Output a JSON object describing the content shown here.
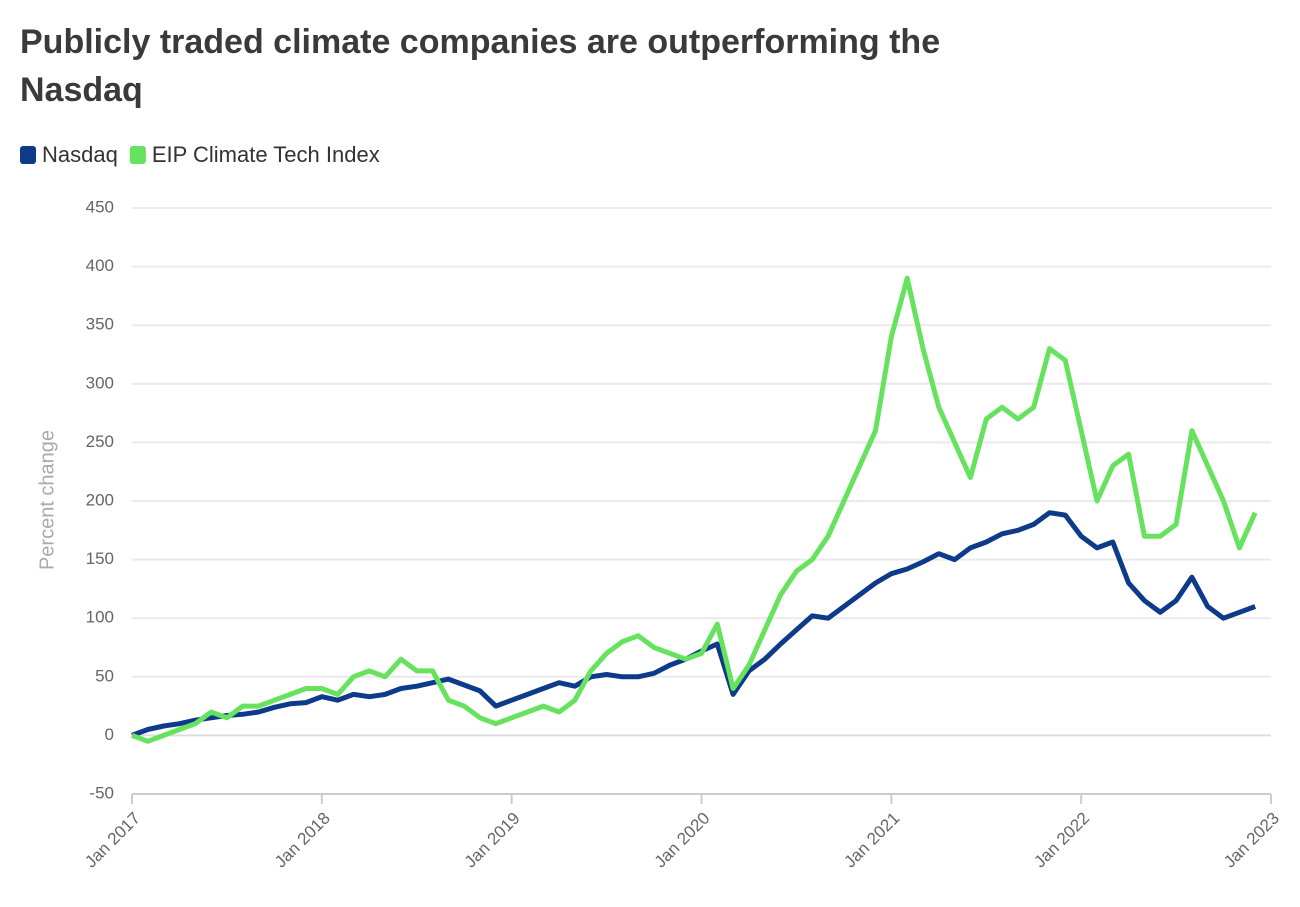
{
  "chart_data": {
    "type": "line",
    "title": "Publicly traded climate companies are outperforming the Nasdaq",
    "y_label": "Percent change",
    "x": [
      "2017-01",
      "2017-02",
      "2017-03",
      "2017-04",
      "2017-05",
      "2017-06",
      "2017-07",
      "2017-08",
      "2017-09",
      "2017-10",
      "2017-11",
      "2017-12",
      "2018-01",
      "2018-02",
      "2018-03",
      "2018-04",
      "2018-05",
      "2018-06",
      "2018-07",
      "2018-08",
      "2018-09",
      "2018-10",
      "2018-11",
      "2018-12",
      "2019-01",
      "2019-02",
      "2019-03",
      "2019-04",
      "2019-05",
      "2019-06",
      "2019-07",
      "2019-08",
      "2019-09",
      "2019-10",
      "2019-11",
      "2019-12",
      "2020-01",
      "2020-02",
      "2020-03",
      "2020-04",
      "2020-05",
      "2020-06",
      "2020-07",
      "2020-08",
      "2020-09",
      "2020-10",
      "2020-11",
      "2020-12",
      "2021-01",
      "2021-02",
      "2021-03",
      "2021-04",
      "2021-05",
      "2021-06",
      "2021-07",
      "2021-08",
      "2021-09",
      "2021-10",
      "2021-11",
      "2021-12",
      "2022-01",
      "2022-02",
      "2022-03",
      "2022-04",
      "2022-05",
      "2022-06",
      "2022-07",
      "2022-08",
      "2022-09",
      "2022-10",
      "2022-11",
      "2022-12"
    ],
    "series": [
      {
        "name": "Nasdaq",
        "color": "#0e3a8a",
        "values": [
          0,
          5,
          8,
          10,
          13,
          15,
          17,
          18,
          20,
          24,
          27,
          28,
          33,
          30,
          35,
          33,
          35,
          40,
          42,
          45,
          48,
          43,
          38,
          25,
          30,
          35,
          40,
          45,
          42,
          50,
          52,
          50,
          50,
          53,
          60,
          65,
          72,
          78,
          35,
          55,
          65,
          78,
          90,
          102,
          100,
          110,
          120,
          130,
          138,
          142,
          148,
          155,
          150,
          160,
          165,
          172,
          175,
          180,
          190,
          188,
          170,
          160,
          165,
          130,
          115,
          105,
          115,
          135,
          110,
          100,
          105,
          110
        ]
      },
      {
        "name": "EIP Climate Tech Index",
        "color": "#67e25f",
        "values": [
          0,
          -5,
          0,
          5,
          10,
          20,
          15,
          25,
          25,
          30,
          35,
          40,
          40,
          35,
          50,
          55,
          50,
          65,
          55,
          55,
          30,
          25,
          15,
          10,
          15,
          20,
          25,
          20,
          30,
          55,
          70,
          80,
          85,
          75,
          70,
          65,
          70,
          95,
          40,
          60,
          90,
          120,
          140,
          150,
          170,
          200,
          230,
          260,
          340,
          390,
          330,
          280,
          250,
          220,
          270,
          280,
          270,
          280,
          330,
          320,
          260,
          200,
          230,
          240,
          170,
          170,
          180,
          260,
          230,
          200,
          160,
          190
        ]
      }
    ],
    "xlim": [
      "2017-01",
      "2023-01"
    ],
    "xticks": [
      {
        "value": "2017-01",
        "label": "Jan 2017"
      },
      {
        "value": "2018-01",
        "label": "Jan 2018"
      },
      {
        "value": "2019-01",
        "label": "Jan 2019"
      },
      {
        "value": "2020-01",
        "label": "Jan 2020"
      },
      {
        "value": "2021-01",
        "label": "Jan 2021"
      },
      {
        "value": "2022-01",
        "label": "Jan 2022"
      },
      {
        "value": "2023-01",
        "label": "Jan 2023"
      }
    ],
    "ylim": [
      -50,
      450
    ],
    "yticks": [
      -50,
      0,
      50,
      100,
      150,
      200,
      250,
      300,
      350,
      400,
      450
    ],
    "grid": true,
    "legend": "top-left"
  }
}
